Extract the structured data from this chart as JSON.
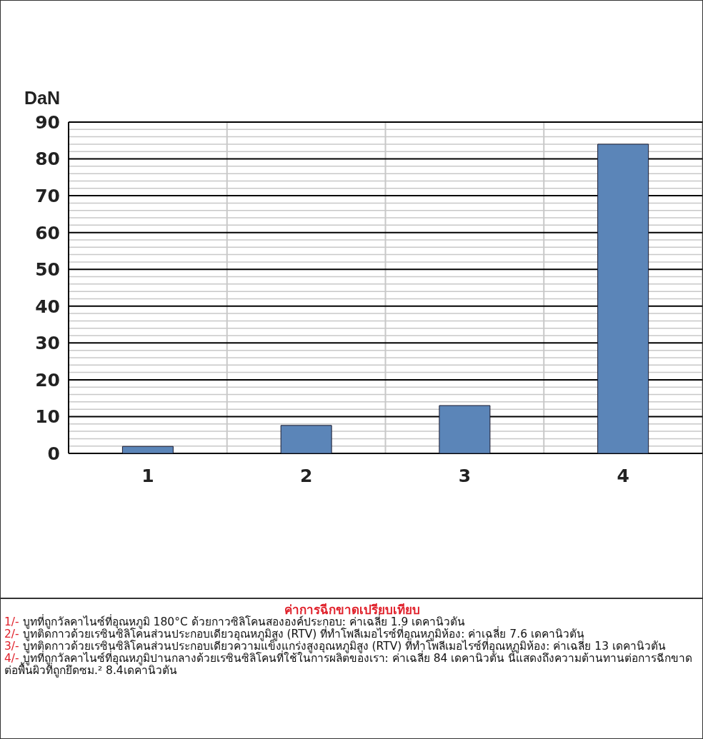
{
  "chart_data": {
    "type": "bar",
    "title": "ค่าการฉีกขาดเปรียบเทียบ",
    "ylabel": "DaN",
    "categories": [
      "1",
      "2",
      "3",
      "4"
    ],
    "values": [
      1.9,
      7.6,
      13,
      84
    ],
    "color": "#5b85b8",
    "ylim": [
      0,
      90
    ],
    "yticks": [
      0,
      10,
      20,
      30,
      40,
      50,
      60,
      70,
      80,
      90
    ],
    "grid": true,
    "annotations": [
      "1/- บูทที่ถูกวัลคาไนซ์ที่อุณหภูมิ 180°C ด้วยกาวซิลิโคนสององค์ประกอบ: ค่าเฉลี่ย 1.9 เดคานิวตัน",
      "2/- บูทติดกาวด้วยเรซินซิลิโคนส่วนประกอบเดียวอุณหภูมิสูง (RTV) ที่ทำโพลีเมอไรซ์ที่อุณหภูมิห้อง: ค่าเฉลี่ย 7.6 เดคานิวตัน",
      "3/- บูทติดกาวด้วยเรซินซิลิโคนส่วนประกอบเดียวความแข็งแกร่งสูงอุณหภูมิสูง (RTV) ที่ทำโพลีเมอไรซ์ที่อุณหภูมิห้อง: ค่าเฉลี่ย 13 เดคานิวตัน",
      "4/- บูทที่ถูกวัลคาไนซ์ที่อุณหภูมิปานกลางด้วยเรซินซิลิโคนที่ใช้ในการผลิตของเรา: ค่าเฉลี่ย 84 เดคานิวตัน นี้แสดงถึงความต้านทานต่อการฉีกขาดต่อพื้นผิวที่ถูกยึดซม.² 8.4เดคานิวตัน"
    ]
  }
}
